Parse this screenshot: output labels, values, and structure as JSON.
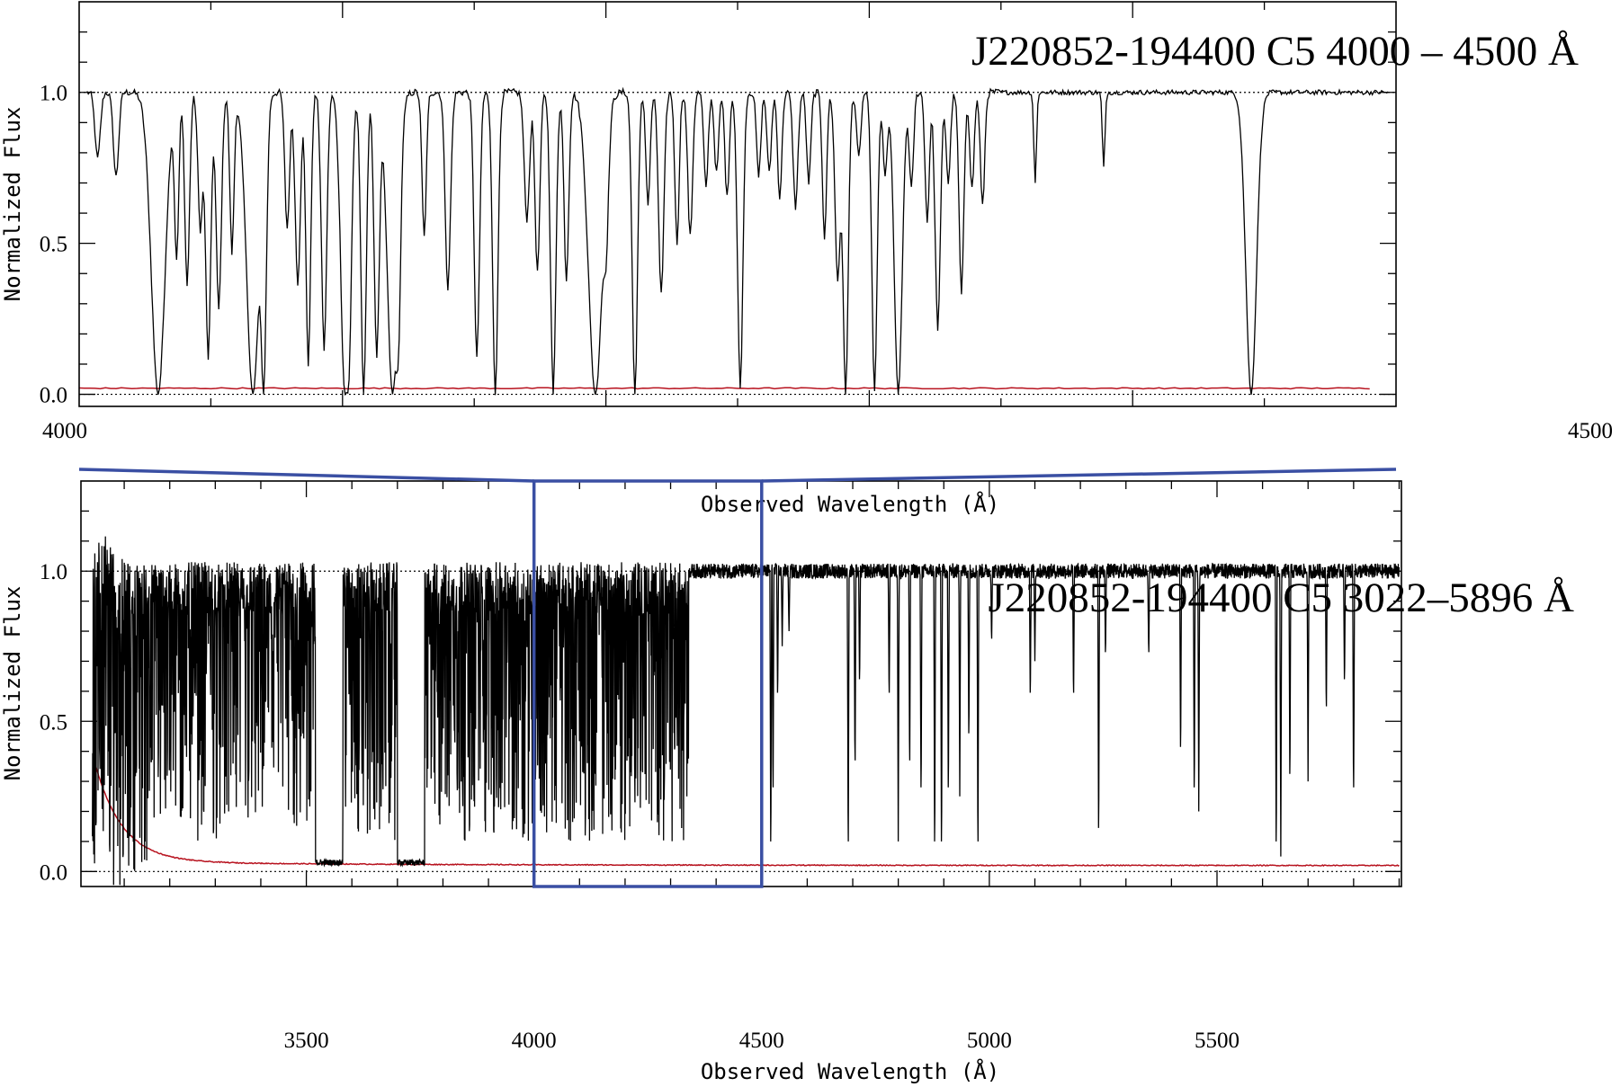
{
  "chart_data": [
    {
      "type": "line",
      "panel": "zoom",
      "title": "J220852-194400   C5    4000 – 4500 Å",
      "xlabel": "Observed Wavelength (Å)",
      "ylabel": "Normalized Flux",
      "xlim": [
        4000,
        4500
      ],
      "ylim": [
        -0.04,
        1.3
      ],
      "xtick_labels": [
        "4000",
        "4500"
      ],
      "ytick_labels": [
        "0.0",
        "0.5",
        "1.0"
      ],
      "yticks": [
        0.0,
        0.5,
        1.0
      ],
      "series": [
        {
          "kind": "flux",
          "color": "#000000",
          "absorption_lines": [
            [
              4007,
              0.78,
              1.0
            ],
            [
              4014,
              0.72,
              1.0
            ],
            [
              4030,
              0.0,
              2.6
            ],
            [
              4037,
              0.45,
              0.8
            ],
            [
              4041,
              0.36,
              0.9
            ],
            [
              4046,
              0.55,
              0.9
            ],
            [
              4049,
              0.12,
              1.0
            ],
            [
              4053,
              0.28,
              1.0
            ],
            [
              4058,
              0.47,
              0.8
            ],
            [
              4066,
              0.0,
              2.4
            ],
            [
              4070,
              0.0,
              1.0
            ],
            [
              4079,
              0.55,
              0.9
            ],
            [
              4083,
              0.37,
              1.0
            ],
            [
              4087,
              0.1,
              0.9
            ],
            [
              4093,
              0.15,
              1.0
            ],
            [
              4101,
              0.0,
              1.6
            ],
            [
              4102,
              0.02,
              1.0
            ],
            [
              4108,
              0.0,
              1.0
            ],
            [
              4113,
              0.13,
              1.0
            ],
            [
              4119,
              0.0,
              2.0
            ],
            [
              4121,
              0.18,
              0.8
            ],
            [
              4131,
              0.52,
              0.8
            ],
            [
              4140,
              0.35,
              1.0
            ],
            [
              4151,
              0.12,
              1.0
            ],
            [
              4158,
              0.0,
              1.0
            ],
            [
              4170,
              0.58,
              1.0
            ],
            [
              4174,
              0.4,
              0.9
            ],
            [
              4180,
              0.0,
              1.0
            ],
            [
              4185,
              0.38,
              0.9
            ],
            [
              4196,
              0.0,
              2.6
            ],
            [
              4200,
              0.6,
              0.9
            ],
            [
              4211,
              0.0,
              1.0
            ],
            [
              4216,
              0.63,
              0.8
            ],
            [
              4221,
              0.33,
              1.0
            ],
            [
              4227,
              0.5,
              0.8
            ],
            [
              4232,
              0.52,
              0.9
            ],
            [
              4238,
              0.68,
              0.8
            ],
            [
              4242,
              0.73,
              0.8
            ],
            [
              4246,
              0.65,
              0.8
            ],
            [
              4251,
              0.02,
              1.0
            ],
            [
              4258,
              0.72,
              0.8
            ],
            [
              4262,
              0.73,
              0.8
            ],
            [
              4266,
              0.65,
              0.8
            ],
            [
              4272,
              0.62,
              0.9
            ],
            [
              4277,
              0.7,
              0.8
            ],
            [
              4283,
              0.52,
              0.8
            ],
            [
              4288,
              0.38,
              1.0
            ],
            [
              4291,
              0.0,
              1.0
            ],
            [
              4296,
              0.78,
              0.8
            ],
            [
              4302,
              0.01,
              1.0
            ],
            [
              4306,
              0.72,
              0.8
            ],
            [
              4311,
              0.0,
              1.5
            ],
            [
              4316,
              0.68,
              0.8
            ],
            [
              4322,
              0.57,
              0.8
            ],
            [
              4326,
              0.22,
              1.0
            ],
            [
              4330,
              0.7,
              0.8
            ],
            [
              4335,
              0.33,
              0.9
            ],
            [
              4339,
              0.68,
              0.8
            ],
            [
              4343,
              0.62,
              0.8
            ],
            [
              4445,
              0.0,
              2.0
            ],
            [
              4363,
              0.7,
              0.5
            ],
            [
              4389,
              0.75,
              0.5
            ]
          ]
        },
        {
          "kind": "error",
          "color": "#b8131f",
          "level": 0.02
        }
      ]
    },
    {
      "type": "line",
      "panel": "full",
      "title": "J220852-194400   C5    3022–5896 Å",
      "xlabel": "Observed Wavelength (Å)",
      "ylabel": "Normalized Flux",
      "xlim": [
        3005,
        5905
      ],
      "ylim": [
        -0.05,
        1.3
      ],
      "xticks": [
        3500,
        4000,
        4500,
        5000,
        5500
      ],
      "xtick_labels": [
        "3500",
        "4000",
        "4500",
        "5000",
        "5500"
      ],
      "ytick_labels": [
        "0.0",
        "0.5",
        "1.0"
      ],
      "yticks": [
        0.0,
        0.5,
        1.0
      ],
      "forest_end": 4340,
      "gaps": [
        [
          3520,
          3580
        ],
        [
          3700,
          3760
        ],
        [
          4985,
          4995
        ]
      ],
      "series": [
        {
          "kind": "flux",
          "color": "#000000",
          "metal_lines": [
            [
              4520,
              0.0
            ],
            [
              4525,
              0.2
            ],
            [
              4535,
              0.55
            ],
            [
              4545,
              0.75
            ],
            [
              4560,
              0.8
            ],
            [
              4690,
              0.0
            ],
            [
              4705,
              0.3
            ],
            [
              4715,
              0.6
            ],
            [
              4780,
              0.55
            ],
            [
              4800,
              0.1
            ],
            [
              4825,
              0.3
            ],
            [
              4850,
              0.2
            ],
            [
              4880,
              0.0
            ],
            [
              4895,
              0.0
            ],
            [
              4910,
              0.2
            ],
            [
              4935,
              0.25
            ],
            [
              4955,
              0.4
            ],
            [
              4975,
              0.0
            ],
            [
              5005,
              0.75
            ],
            [
              5090,
              0.55
            ],
            [
              5100,
              0.7
            ],
            [
              5185,
              0.55
            ],
            [
              5240,
              0.05
            ],
            [
              5255,
              0.7
            ],
            [
              5350,
              0.7
            ],
            [
              5420,
              0.35
            ],
            [
              5450,
              0.2
            ],
            [
              5460,
              0.2
            ],
            [
              5630,
              0.0
            ],
            [
              5640,
              0.05
            ],
            [
              5660,
              0.25
            ],
            [
              5700,
              0.3
            ],
            [
              5740,
              0.5
            ],
            [
              5780,
              0.6
            ],
            [
              5800,
              0.2
            ]
          ]
        },
        {
          "kind": "error",
          "color": "#b8131f",
          "level": 0.02
        }
      ]
    }
  ],
  "zoom_box": {
    "x_range": [
      4000,
      4500
    ],
    "color": "#3a4fa3"
  }
}
